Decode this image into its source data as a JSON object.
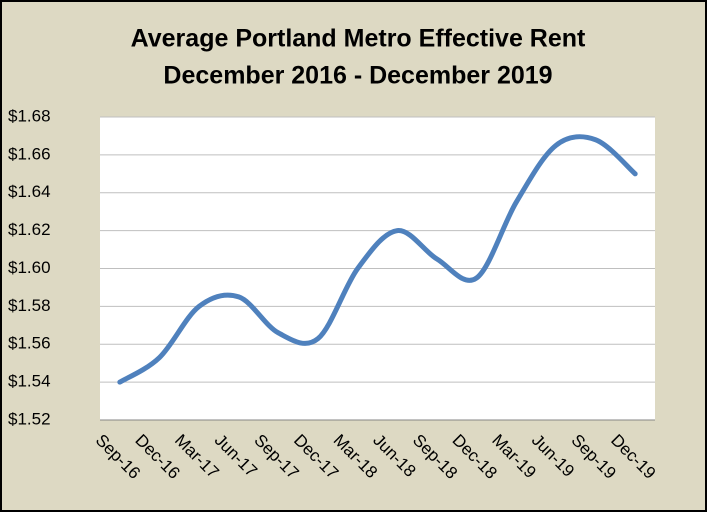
{
  "chart_data": {
    "type": "line",
    "title": [
      "Average Portland Metro Effective Rent",
      "December 2016 - December 2019"
    ],
    "categories": [
      "Sep-16",
      "Dec-16",
      "Mar-17",
      "Jun-17",
      "Sep-17",
      "Dec-17",
      "Mar-18",
      "Jun-18",
      "Sep-18",
      "Dec-18",
      "Mar-19",
      "Jun-19",
      "Sep-19",
      "Dec-19"
    ],
    "series": [
      {
        "name": "Effective Rent",
        "color": "#4f81bd",
        "values": [
          1.54,
          1.553,
          1.58,
          1.585,
          1.566,
          1.563,
          1.6,
          1.62,
          1.605,
          1.595,
          1.635,
          1.665,
          1.668,
          1.65
        ]
      }
    ],
    "ylim": [
      1.52,
      1.68
    ],
    "yticks": [
      {
        "value": 1.52,
        "label": "$1.52"
      },
      {
        "value": 1.54,
        "label": "$1.54"
      },
      {
        "value": 1.56,
        "label": "$1.56"
      },
      {
        "value": 1.58,
        "label": "$1.58"
      },
      {
        "value": 1.6,
        "label": "$1.60"
      },
      {
        "value": 1.62,
        "label": "$1.62"
      },
      {
        "value": 1.64,
        "label": "$1.64"
      },
      {
        "value": 1.66,
        "label": "$1.66"
      },
      {
        "value": 1.68,
        "label": "$1.68"
      }
    ],
    "grid": true,
    "smooth": true
  }
}
